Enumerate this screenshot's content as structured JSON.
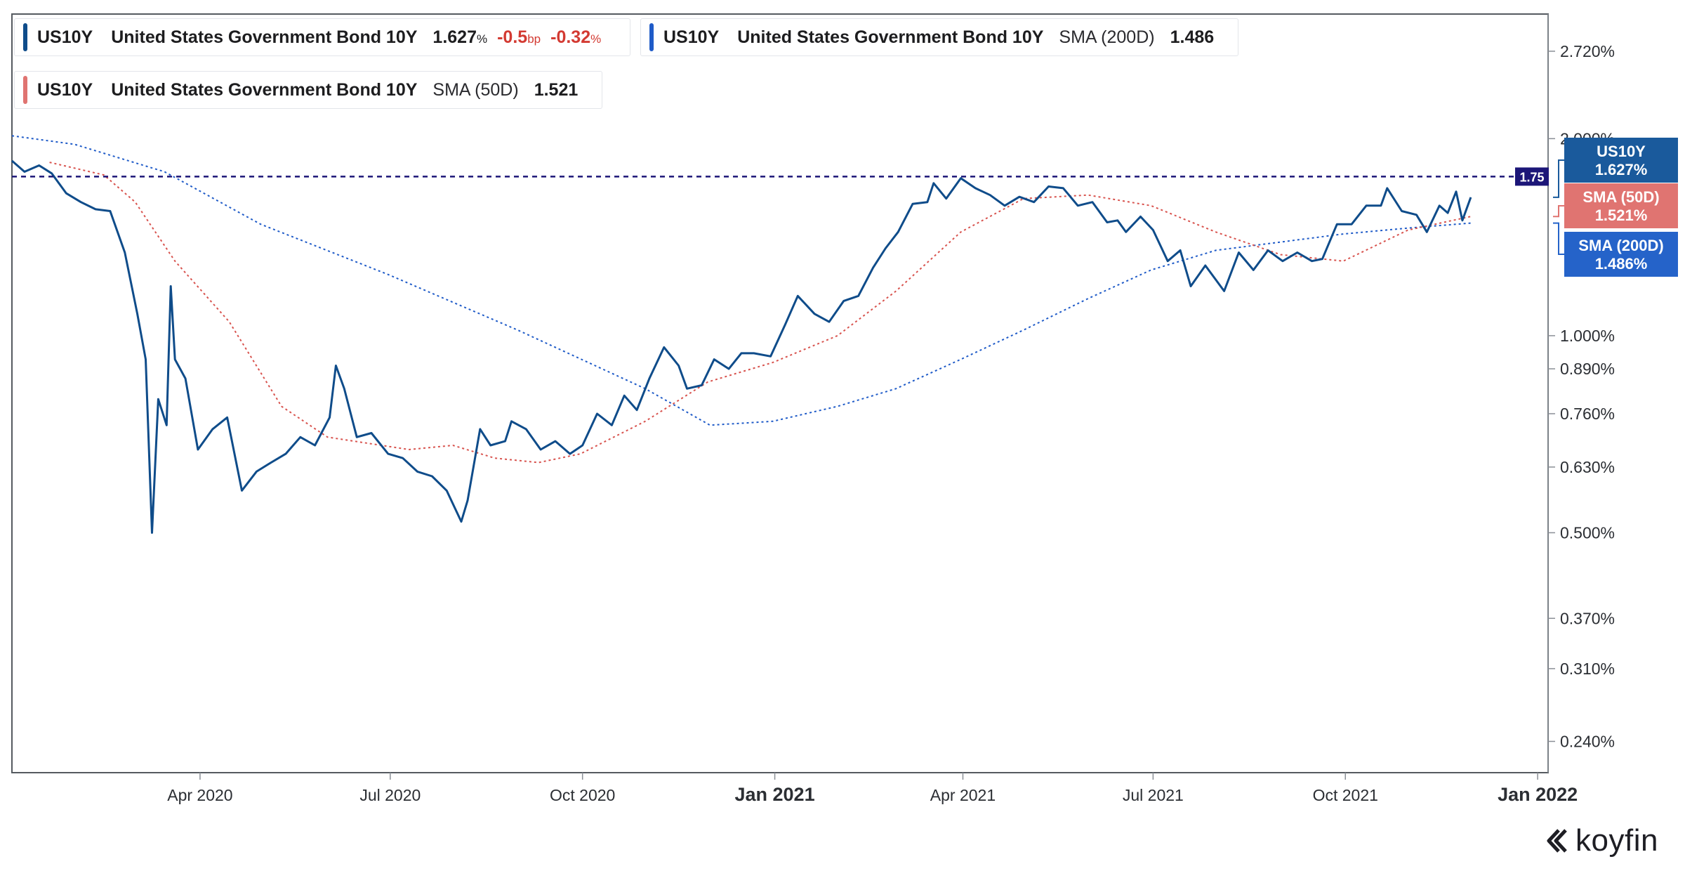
{
  "legend": [
    {
      "symbol": "US10Y",
      "name": "United States Government Bond 10Y",
      "value": "1.627",
      "value_unit": "%",
      "change": "-0.5",
      "change_unit": "bp",
      "change_pct": "-0.32",
      "change_pct_unit": "%",
      "color": "#0f4c8a"
    },
    {
      "symbol": "US10Y",
      "name": "United States Government Bond 10Y",
      "indicator": "SMA (200D)",
      "value": "1.486",
      "color": "#1f5bc8"
    },
    {
      "symbol": "US10Y",
      "name": "United States Government Bond 10Y",
      "indicator": "SMA (50D)",
      "value": "1.521",
      "color": "#e07471"
    }
  ],
  "price_tags": [
    {
      "line1": "US10Y",
      "line2": "1.627%",
      "color": "#1a5a9c"
    },
    {
      "line1": "SMA (50D)",
      "line2": "1.521%",
      "color": "#e07471"
    },
    {
      "line1": "SMA (200D)",
      "line2": "1.486%",
      "color": "#2563c9"
    }
  ],
  "level_line": {
    "label": "1.75",
    "color": "#1c1678"
  },
  "brand": {
    "name": "koyfin"
  },
  "chart_data": {
    "type": "line",
    "y_scale": "log",
    "ylim": [
      0.215,
      3.1
    ],
    "xlim": [
      "2020-01-02",
      "2022-01-06"
    ],
    "x_ticks": [
      {
        "date": "2020-04-01",
        "label": "Apr 2020",
        "bold": false
      },
      {
        "date": "2020-07-01",
        "label": "Jul 2020",
        "bold": false
      },
      {
        "date": "2020-10-01",
        "label": "Oct 2020",
        "bold": false
      },
      {
        "date": "2021-01-01",
        "label": "Jan 2021",
        "bold": true
      },
      {
        "date": "2021-04-01",
        "label": "Apr 2021",
        "bold": false
      },
      {
        "date": "2021-07-01",
        "label": "Jul 2021",
        "bold": false
      },
      {
        "date": "2021-10-01",
        "label": "Oct 2021",
        "bold": false
      },
      {
        "date": "2022-01-01",
        "label": "Jan 2022",
        "bold": true
      }
    ],
    "y_ticks": [
      {
        "value": 2.72,
        "label": "2.720%"
      },
      {
        "value": 2.0,
        "label": "2.000%"
      },
      {
        "value": 1.0,
        "label": "1.000%"
      },
      {
        "value": 0.89,
        "label": "0.890%"
      },
      {
        "value": 0.76,
        "label": "0.760%"
      },
      {
        "value": 0.63,
        "label": "0.630%"
      },
      {
        "value": 0.5,
        "label": "0.500%"
      },
      {
        "value": 0.37,
        "label": "0.370%"
      },
      {
        "value": 0.31,
        "label": "0.310%"
      },
      {
        "value": 0.24,
        "label": "0.240%"
      }
    ],
    "level": 1.75,
    "series": [
      {
        "name": "US10Y",
        "color": "#0f4c8a",
        "style": "solid",
        "points": [
          [
            "2020-01-02",
            1.85
          ],
          [
            "2020-01-08",
            1.78
          ],
          [
            "2020-01-15",
            1.82
          ],
          [
            "2020-01-21",
            1.77
          ],
          [
            "2020-01-28",
            1.65
          ],
          [
            "2020-02-04",
            1.6
          ],
          [
            "2020-02-11",
            1.56
          ],
          [
            "2020-02-18",
            1.55
          ],
          [
            "2020-02-25",
            1.34
          ],
          [
            "2020-03-02",
            1.08
          ],
          [
            "2020-03-06",
            0.92
          ],
          [
            "2020-03-09",
            0.5
          ],
          [
            "2020-03-12",
            0.8
          ],
          [
            "2020-03-16",
            0.73
          ],
          [
            "2020-03-18",
            1.19
          ],
          [
            "2020-03-20",
            0.92
          ],
          [
            "2020-03-25",
            0.86
          ],
          [
            "2020-03-31",
            0.67
          ],
          [
            "2020-04-07",
            0.72
          ],
          [
            "2020-04-14",
            0.75
          ],
          [
            "2020-04-21",
            0.58
          ],
          [
            "2020-04-28",
            0.62
          ],
          [
            "2020-05-05",
            0.64
          ],
          [
            "2020-05-12",
            0.66
          ],
          [
            "2020-05-19",
            0.7
          ],
          [
            "2020-05-26",
            0.68
          ],
          [
            "2020-06-02",
            0.75
          ],
          [
            "2020-06-05",
            0.9
          ],
          [
            "2020-06-09",
            0.83
          ],
          [
            "2020-06-15",
            0.7
          ],
          [
            "2020-06-22",
            0.71
          ],
          [
            "2020-06-30",
            0.66
          ],
          [
            "2020-07-07",
            0.65
          ],
          [
            "2020-07-14",
            0.62
          ],
          [
            "2020-07-21",
            0.61
          ],
          [
            "2020-07-28",
            0.58
          ],
          [
            "2020-08-04",
            0.52
          ],
          [
            "2020-08-07",
            0.56
          ],
          [
            "2020-08-13",
            0.72
          ],
          [
            "2020-08-18",
            0.68
          ],
          [
            "2020-08-25",
            0.69
          ],
          [
            "2020-08-28",
            0.74
          ],
          [
            "2020-09-04",
            0.72
          ],
          [
            "2020-09-11",
            0.67
          ],
          [
            "2020-09-18",
            0.69
          ],
          [
            "2020-09-25",
            0.66
          ],
          [
            "2020-10-01",
            0.68
          ],
          [
            "2020-10-08",
            0.76
          ],
          [
            "2020-10-15",
            0.73
          ],
          [
            "2020-10-21",
            0.81
          ],
          [
            "2020-10-27",
            0.77
          ],
          [
            "2020-11-02",
            0.86
          ],
          [
            "2020-11-09",
            0.96
          ],
          [
            "2020-11-16",
            0.9
          ],
          [
            "2020-11-20",
            0.83
          ],
          [
            "2020-11-27",
            0.84
          ],
          [
            "2020-12-03",
            0.92
          ],
          [
            "2020-12-10",
            0.89
          ],
          [
            "2020-12-16",
            0.94
          ],
          [
            "2020-12-22",
            0.94
          ],
          [
            "2020-12-30",
            0.93
          ],
          [
            "2021-01-06",
            1.04
          ],
          [
            "2021-01-12",
            1.15
          ],
          [
            "2021-01-20",
            1.08
          ],
          [
            "2021-01-27",
            1.05
          ],
          [
            "2021-02-03",
            1.13
          ],
          [
            "2021-02-10",
            1.15
          ],
          [
            "2021-02-17",
            1.27
          ],
          [
            "2021-02-23",
            1.36
          ],
          [
            "2021-03-01",
            1.44
          ],
          [
            "2021-03-08",
            1.59
          ],
          [
            "2021-03-15",
            1.6
          ],
          [
            "2021-03-18",
            1.71
          ],
          [
            "2021-03-24",
            1.62
          ],
          [
            "2021-03-31",
            1.74
          ],
          [
            "2021-04-07",
            1.68
          ],
          [
            "2021-04-14",
            1.64
          ],
          [
            "2021-04-21",
            1.58
          ],
          [
            "2021-04-28",
            1.63
          ],
          [
            "2021-05-05",
            1.6
          ],
          [
            "2021-05-12",
            1.69
          ],
          [
            "2021-05-19",
            1.68
          ],
          [
            "2021-05-26",
            1.58
          ],
          [
            "2021-06-02",
            1.6
          ],
          [
            "2021-06-09",
            1.49
          ],
          [
            "2021-06-14",
            1.5
          ],
          [
            "2021-06-18",
            1.44
          ],
          [
            "2021-06-25",
            1.52
          ],
          [
            "2021-07-01",
            1.45
          ],
          [
            "2021-07-08",
            1.3
          ],
          [
            "2021-07-14",
            1.35
          ],
          [
            "2021-07-19",
            1.19
          ],
          [
            "2021-07-26",
            1.28
          ],
          [
            "2021-08-04",
            1.17
          ],
          [
            "2021-08-11",
            1.34
          ],
          [
            "2021-08-18",
            1.26
          ],
          [
            "2021-08-25",
            1.35
          ],
          [
            "2021-09-01",
            1.3
          ],
          [
            "2021-09-08",
            1.34
          ],
          [
            "2021-09-15",
            1.3
          ],
          [
            "2021-09-20",
            1.31
          ],
          [
            "2021-09-27",
            1.48
          ],
          [
            "2021-10-04",
            1.48
          ],
          [
            "2021-10-11",
            1.58
          ],
          [
            "2021-10-18",
            1.58
          ],
          [
            "2021-10-21",
            1.68
          ],
          [
            "2021-10-28",
            1.55
          ],
          [
            "2021-11-04",
            1.53
          ],
          [
            "2021-11-09",
            1.44
          ],
          [
            "2021-11-15",
            1.58
          ],
          [
            "2021-11-19",
            1.54
          ],
          [
            "2021-11-23",
            1.66
          ],
          [
            "2021-11-26",
            1.5
          ],
          [
            "2021-11-30",
            1.627
          ]
        ]
      },
      {
        "name": "SMA (50D)",
        "color": "#d8534e",
        "style": "dotted",
        "points": [
          [
            "2020-01-20",
            1.84
          ],
          [
            "2020-02-15",
            1.76
          ],
          [
            "2020-03-01",
            1.6
          ],
          [
            "2020-03-20",
            1.3
          ],
          [
            "2020-04-15",
            1.05
          ],
          [
            "2020-05-10",
            0.78
          ],
          [
            "2020-06-01",
            0.7
          ],
          [
            "2020-07-10",
            0.67
          ],
          [
            "2020-07-31",
            0.68
          ],
          [
            "2020-08-20",
            0.65
          ],
          [
            "2020-09-10",
            0.64
          ],
          [
            "2020-09-30",
            0.66
          ],
          [
            "2020-10-31",
            0.74
          ],
          [
            "2020-11-30",
            0.85
          ],
          [
            "2020-12-31",
            0.91
          ],
          [
            "2021-01-31",
            1.0
          ],
          [
            "2021-02-28",
            1.17
          ],
          [
            "2021-03-31",
            1.44
          ],
          [
            "2021-04-30",
            1.62
          ],
          [
            "2021-05-31",
            1.64
          ],
          [
            "2021-06-30",
            1.58
          ],
          [
            "2021-07-31",
            1.44
          ],
          [
            "2021-08-31",
            1.33
          ],
          [
            "2021-09-30",
            1.3
          ],
          [
            "2021-10-31",
            1.45
          ],
          [
            "2021-11-30",
            1.521
          ]
        ]
      },
      {
        "name": "SMA (200D)",
        "color": "#1f5bc8",
        "style": "dotted",
        "points": [
          [
            "2020-01-02",
            2.02
          ],
          [
            "2020-02-01",
            1.96
          ],
          [
            "2020-03-15",
            1.78
          ],
          [
            "2020-04-30",
            1.48
          ],
          [
            "2020-06-30",
            1.24
          ],
          [
            "2020-08-31",
            1.02
          ],
          [
            "2020-10-31",
            0.83
          ],
          [
            "2020-12-01",
            0.73
          ],
          [
            "2020-12-31",
            0.74
          ],
          [
            "2021-01-31",
            0.78
          ],
          [
            "2021-02-28",
            0.83
          ],
          [
            "2021-03-31",
            0.92
          ],
          [
            "2021-04-30",
            1.02
          ],
          [
            "2021-05-31",
            1.14
          ],
          [
            "2021-06-30",
            1.26
          ],
          [
            "2021-07-31",
            1.35
          ],
          [
            "2021-08-31",
            1.39
          ],
          [
            "2021-09-30",
            1.43
          ],
          [
            "2021-10-31",
            1.46
          ],
          [
            "2021-11-30",
            1.486
          ]
        ]
      }
    ]
  }
}
